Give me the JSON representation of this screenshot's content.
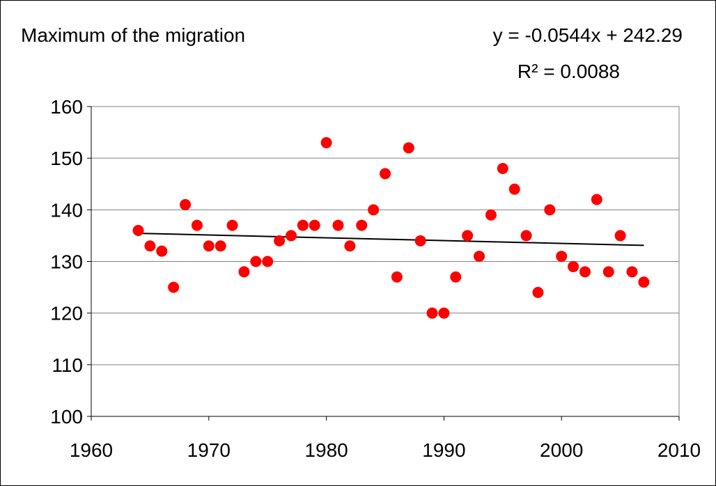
{
  "chart_data": {
    "type": "scatter",
    "title": "Maximum of the migration",
    "annotations": [
      "y = -0.0544x + 242.29",
      "R² = 0.0088"
    ],
    "x": [
      1964,
      1965,
      1966,
      1967,
      1968,
      1969,
      1970,
      1971,
      1972,
      1973,
      1974,
      1975,
      1976,
      1977,
      1978,
      1979,
      1980,
      1981,
      1982,
      1983,
      1984,
      1985,
      1986,
      1987,
      1988,
      1989,
      1990,
      1991,
      1992,
      1993,
      1994,
      1995,
      1996,
      1997,
      1998,
      1999,
      2000,
      2001,
      2002,
      2003,
      2004,
      2005,
      2006,
      2007
    ],
    "values": [
      136,
      133,
      132,
      125,
      141,
      137,
      133,
      133,
      137,
      128,
      130,
      130,
      134,
      135,
      137,
      137,
      153,
      137,
      133,
      137,
      140,
      147,
      127,
      152,
      134,
      120,
      120,
      127,
      135,
      131,
      139,
      148,
      144,
      135,
      124,
      140,
      131,
      129,
      128,
      142,
      128,
      135,
      128,
      126
    ],
    "color": "#ff0000",
    "trendline": {
      "x": [
        1964,
        2007
      ],
      "values": [
        135.45,
        133.11
      ],
      "color": "#000000"
    },
    "xlim": [
      1960,
      2010
    ],
    "xticks": [
      1960,
      1970,
      1980,
      1990,
      2000,
      2010
    ],
    "ylim": [
      100,
      160
    ],
    "yticks": [
      100,
      110,
      120,
      130,
      140,
      150,
      160
    ],
    "grid": true
  }
}
